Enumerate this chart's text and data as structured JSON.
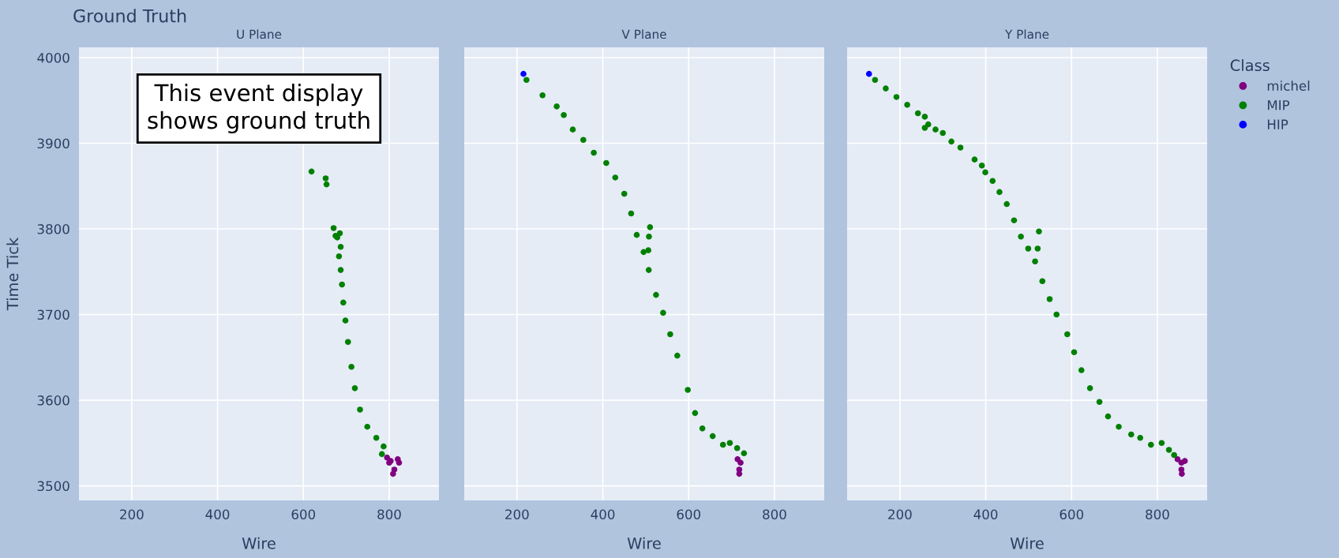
{
  "chart_data": [
    {
      "type": "scatter",
      "title": "Ground Truth",
      "subtitle": "U Plane",
      "xlabel": "Wire",
      "ylabel": "Time Tick",
      "xlim": [
        77,
        916
      ],
      "ylim": [
        3483,
        4012
      ],
      "xticks": [
        200,
        400,
        600,
        800
      ],
      "yticks": [
        3500,
        3600,
        3700,
        3800,
        3900,
        4000
      ],
      "grid": true,
      "marker": "circle",
      "legend": false,
      "annotations": [
        "This event display\nshows ground truth"
      ],
      "series": [
        {
          "color": "#800080",
          "x": [
            795,
            803.5,
            820,
            812,
            809,
            823,
            800
          ],
          "values": [
            3533,
            3529,
            3531,
            3519,
            3514,
            3527,
            3527
          ]
        },
        {
          "color": "#008000",
          "x": [
            619,
            652,
            654,
            670.5,
            685,
            675,
            679,
            687,
            683,
            687,
            690,
            693,
            698,
            704,
            712,
            720,
            732,
            749,
            770,
            787,
            783
          ],
          "values": [
            3867,
            3859,
            3852,
            3801,
            3795,
            3792,
            3790,
            3779,
            3768,
            3752,
            3735,
            3714,
            3693,
            3668,
            3639,
            3614,
            3589,
            3569,
            3556,
            3546,
            3537
          ]
        }
      ]
    },
    {
      "type": "scatter",
      "subtitle": "V Plane",
      "xlabel": "Wire",
      "xlim": [
        77,
        916
      ],
      "ylim": [
        3483,
        4012
      ],
      "xticks": [
        200,
        400,
        600,
        800
      ],
      "yticks": [
        3500,
        3600,
        3700,
        3800,
        3900,
        4000
      ],
      "grid": true,
      "marker": "circle",
      "legend": false,
      "tick_labels": "x",
      "series": [
        {
          "color": "#800080",
          "x": [
            721,
            718,
            718,
            714
          ],
          "values": [
            3527,
            3519,
            3514,
            3531
          ]
        },
        {
          "color": "#008000",
          "x": [
            222,
            259.5,
            292.5,
            309,
            330,
            354.5,
            379,
            408,
            429,
            450,
            466,
            479,
            495,
            507,
            524,
            540.5,
            557,
            573.5,
            510,
            507.5,
            506,
            598,
            615,
            632,
            656,
            680,
            696,
            713,
            729
          ],
          "values": [
            3974,
            3956,
            3943,
            3933,
            3916,
            3904,
            3889,
            3877,
            3860,
            3841,
            3818,
            3793,
            3773,
            3752,
            3723,
            3702,
            3677,
            3652,
            3802,
            3791,
            3775,
            3612,
            3585,
            3567,
            3558,
            3548,
            3550,
            3544,
            3538
          ]
        },
        {
          "color": "#0000ff",
          "x": [
            215
          ],
          "values": [
            3981
          ]
        }
      ]
    },
    {
      "type": "scatter",
      "subtitle": "Y Plane",
      "xlabel": "Wire",
      "xlim": [
        77,
        916
      ],
      "ylim": [
        3483,
        4012
      ],
      "xticks": [
        200,
        400,
        600,
        800
      ],
      "yticks": [
        3500,
        3600,
        3700,
        3800,
        3900,
        4000
      ],
      "grid": true,
      "marker": "circle",
      "legend": "right",
      "legend_title": "Class",
      "tick_labels": "x",
      "series": [
        {
          "name": "michel",
          "color": "#800080",
          "x": [
            847,
            856,
            864,
            856,
            857
          ],
          "values": [
            3531,
            3527,
            3529,
            3519,
            3514
          ]
        },
        {
          "name": "MIP",
          "color": "#008000",
          "x": [
            142,
            167,
            192,
            217,
            242,
            258,
            258,
            266,
            283,
            300,
            320,
            341,
            374,
            391,
            399,
            416,
            432,
            449,
            466,
            482,
            499,
            515,
            532,
            549,
            565,
            590,
            606,
            623,
            643,
            665,
            685,
            710,
            739,
            760,
            785,
            810,
            827,
            839,
            524,
            521
          ],
          "values": [
            3974,
            3964,
            3954,
            3945,
            3935,
            3931,
            3918,
            3922,
            3916,
            3912,
            3902,
            3895,
            3881,
            3874,
            3866,
            3856,
            3843,
            3829,
            3810,
            3791,
            3777,
            3762,
            3739,
            3718,
            3700,
            3677,
            3656,
            3635,
            3614,
            3598,
            3581,
            3569,
            3560,
            3556,
            3548,
            3550,
            3542,
            3536,
            3797,
            3777
          ]
        },
        {
          "name": "HIP",
          "color": "#0000ff",
          "x": [
            128
          ],
          "values": [
            3981
          ]
        }
      ]
    }
  ]
}
